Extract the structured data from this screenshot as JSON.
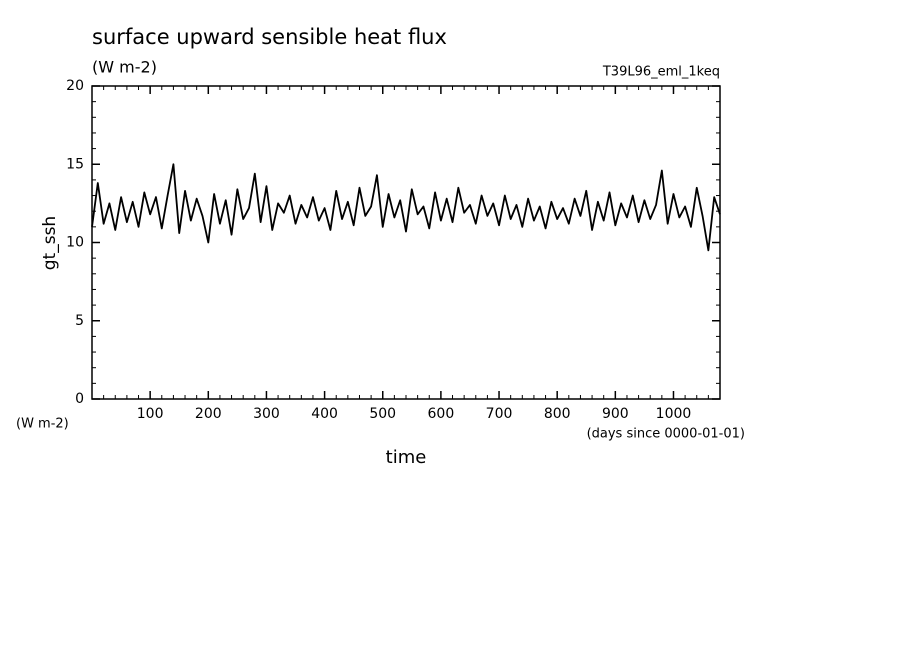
{
  "chart_data": {
    "type": "line",
    "title": "surface upward sensible heat flux",
    "subtitle": "(W m-2)",
    "run_label": "T39L96_eml_1keq",
    "y_label": "gt_ssh",
    "y_units": "(W m-2)",
    "x_label": "time",
    "x_units": "(days since 0000-01-01)",
    "xlim": [
      0,
      1080
    ],
    "xticks": [
      100,
      200,
      300,
      400,
      500,
      600,
      700,
      800,
      900,
      1000
    ],
    "ylim": [
      0,
      20
    ],
    "yticks": [
      0,
      5,
      10,
      15,
      20
    ],
    "grid": false,
    "series": [
      {
        "name": "gt_ssh",
        "color": "#000000",
        "x": [
          0,
          10,
          20,
          30,
          40,
          50,
          60,
          70,
          80,
          90,
          100,
          110,
          120,
          130,
          140,
          150,
          160,
          170,
          180,
          190,
          200,
          210,
          220,
          230,
          240,
          250,
          260,
          270,
          280,
          290,
          300,
          310,
          320,
          330,
          340,
          350,
          360,
          370,
          380,
          390,
          400,
          410,
          420,
          430,
          440,
          450,
          460,
          470,
          480,
          490,
          500,
          510,
          520,
          530,
          540,
          550,
          560,
          570,
          580,
          590,
          600,
          610,
          620,
          630,
          640,
          650,
          660,
          670,
          680,
          690,
          700,
          710,
          720,
          730,
          740,
          750,
          760,
          770,
          780,
          790,
          800,
          810,
          820,
          830,
          840,
          850,
          860,
          870,
          880,
          890,
          900,
          910,
          920,
          930,
          940,
          950,
          960,
          970,
          980,
          990,
          1000,
          1010,
          1020,
          1030,
          1040,
          1050,
          1060,
          1070,
          1080
        ],
        "values": [
          11.0,
          13.8,
          11.2,
          12.5,
          10.8,
          12.9,
          11.3,
          12.6,
          11.0,
          13.2,
          11.8,
          12.9,
          10.9,
          13.0,
          15.0,
          10.6,
          13.3,
          11.4,
          12.8,
          11.7,
          10.0,
          13.1,
          11.2,
          12.7,
          10.5,
          13.4,
          11.5,
          12.2,
          14.4,
          11.3,
          13.6,
          10.8,
          12.5,
          11.9,
          13.0,
          11.2,
          12.4,
          11.6,
          12.9,
          11.4,
          12.2,
          10.8,
          13.3,
          11.5,
          12.6,
          11.1,
          13.5,
          11.7,
          12.3,
          14.3,
          11.0,
          13.1,
          11.6,
          12.7,
          10.7,
          13.4,
          11.8,
          12.3,
          10.9,
          13.2,
          11.4,
          12.8,
          11.3,
          13.5,
          11.9,
          12.4,
          11.2,
          13.0,
          11.7,
          12.5,
          11.1,
          13.0,
          11.5,
          12.4,
          11.0,
          12.8,
          11.4,
          12.3,
          10.9,
          12.6,
          11.5,
          12.2,
          11.2,
          12.8,
          11.7,
          13.3,
          10.8,
          12.6,
          11.4,
          13.2,
          11.1,
          12.5,
          11.6,
          13.0,
          11.3,
          12.7,
          11.5,
          12.4,
          14.6,
          11.2,
          13.1,
          11.6,
          12.3,
          11.0,
          13.5,
          11.7,
          9.5,
          12.9,
          11.8
        ]
      }
    ]
  }
}
